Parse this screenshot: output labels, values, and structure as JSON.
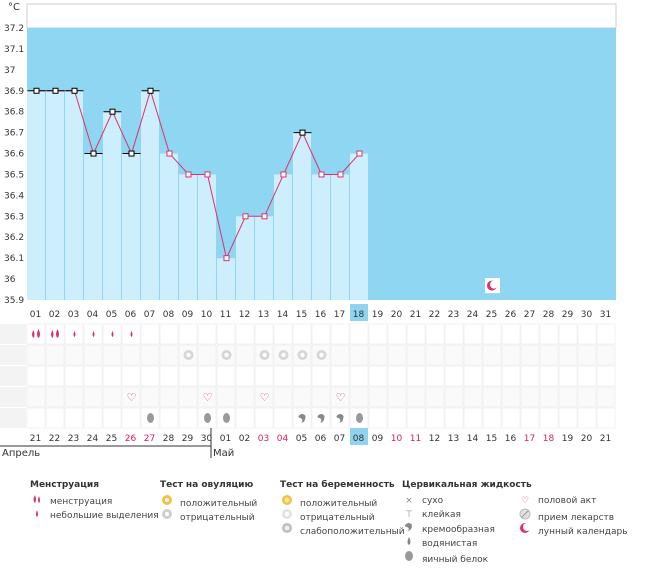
{
  "chart_data": {
    "type": "line",
    "unit_label": "°C",
    "ylim": [
      35.9,
      37.2
    ],
    "yticks": [
      "35.9",
      "36",
      "36.1",
      "36.2",
      "36.3",
      "36.4",
      "36.5",
      "36.6",
      "36.7",
      "36.8",
      "36.9",
      "37",
      "37.1",
      "37.2"
    ],
    "cycle_days": [
      "01",
      "02",
      "03",
      "04",
      "05",
      "06",
      "07",
      "08",
      "09",
      "10",
      "11",
      "12",
      "13",
      "14",
      "15",
      "16",
      "17",
      "18",
      "19",
      "20",
      "21",
      "22",
      "23",
      "24",
      "25",
      "26",
      "27",
      "28",
      "29",
      "30",
      "31"
    ],
    "current_day": "18",
    "temperatures": [
      36.9,
      36.9,
      36.9,
      36.6,
      36.8,
      36.6,
      36.9,
      36.6,
      36.5,
      36.5,
      36.1,
      36.3,
      36.3,
      36.5,
      36.7,
      36.5,
      36.5,
      36.6
    ],
    "coverline_days": [
      "01",
      "02",
      "03",
      "04",
      "05",
      "06",
      "07",
      "15"
    ],
    "lunar_day": "25",
    "dates": [
      "21",
      "22",
      "23",
      "24",
      "25",
      "26",
      "27",
      "28",
      "29",
      "30",
      "01",
      "02",
      "03",
      "04",
      "05",
      "06",
      "07",
      "08",
      "09",
      "10",
      "11",
      "12",
      "13",
      "14",
      "15",
      "16",
      "17",
      "18",
      "19",
      "20",
      "21"
    ],
    "date_colors": [
      "#333333",
      "#333333",
      "#333333",
      "#333333",
      "#333333",
      "#d81b60",
      "#d81b60",
      "#333333",
      "#333333",
      "#333333",
      "#333333",
      "#333333",
      "#d81b60",
      "#d81b60",
      "#333333",
      "#333333",
      "#333333",
      "#333333",
      "#333333",
      "#d81b60",
      "#d81b60",
      "#333333",
      "#333333",
      "#333333",
      "#333333",
      "#333333",
      "#d81b60",
      "#d81b60",
      "#333333",
      "#333333",
      "#333333"
    ],
    "current_date": "08",
    "month_labels": [
      {
        "text": "Апрель",
        "day": "01"
      },
      {
        "text": "Май",
        "day": "11"
      }
    ],
    "markers": {
      "menstruation_heavy": [
        "01",
        "02"
      ],
      "menstruation_light": [
        "03",
        "04",
        "05",
        "06"
      ],
      "ovulation_negative": [
        "09",
        "11",
        "13",
        "14",
        "15",
        "16"
      ],
      "intercourse": [
        "06",
        "10",
        "13",
        "17"
      ],
      "egg_white": [
        "07",
        "10",
        "11",
        "18"
      ],
      "creamy": [
        "15",
        "16",
        "17"
      ]
    }
  },
  "colors": {
    "sky": "#8fd6f2",
    "bar_fill": "#cdeefc",
    "line": "#e0306a",
    "accent": "#e0306a",
    "highlight": "#8fd3ef",
    "grid": "#e6e6e6",
    "drop": "#e0306a"
  },
  "legend": {
    "menstruation": {
      "title": "Менструация",
      "items": [
        "менструация",
        "небольшие выделения"
      ]
    },
    "ovulation_test": {
      "title": "Тест на овуляцию",
      "items": [
        "положительный",
        "отрицательный"
      ]
    },
    "pregnancy_test": {
      "title": "Тест на беременность",
      "items": [
        "положительный",
        "отрицательный",
        "слабоположительный"
      ]
    },
    "cervical_fluid": {
      "title": "Цервикальная жидкость",
      "items": [
        "сухо",
        "клейкая",
        "кремообразная",
        "водянистая",
        "яичный белок"
      ]
    },
    "other": {
      "items": [
        "половой акт",
        "прием лекарств",
        "лунный календарь"
      ]
    }
  },
  "icons": {
    "menstruation": "drop-icon",
    "ovulation": "swirl-icon",
    "intercourse": "heart-icon",
    "egg_white": "egg-drop-icon",
    "creamy": "comma-icon",
    "lunar": "moon-icon"
  }
}
